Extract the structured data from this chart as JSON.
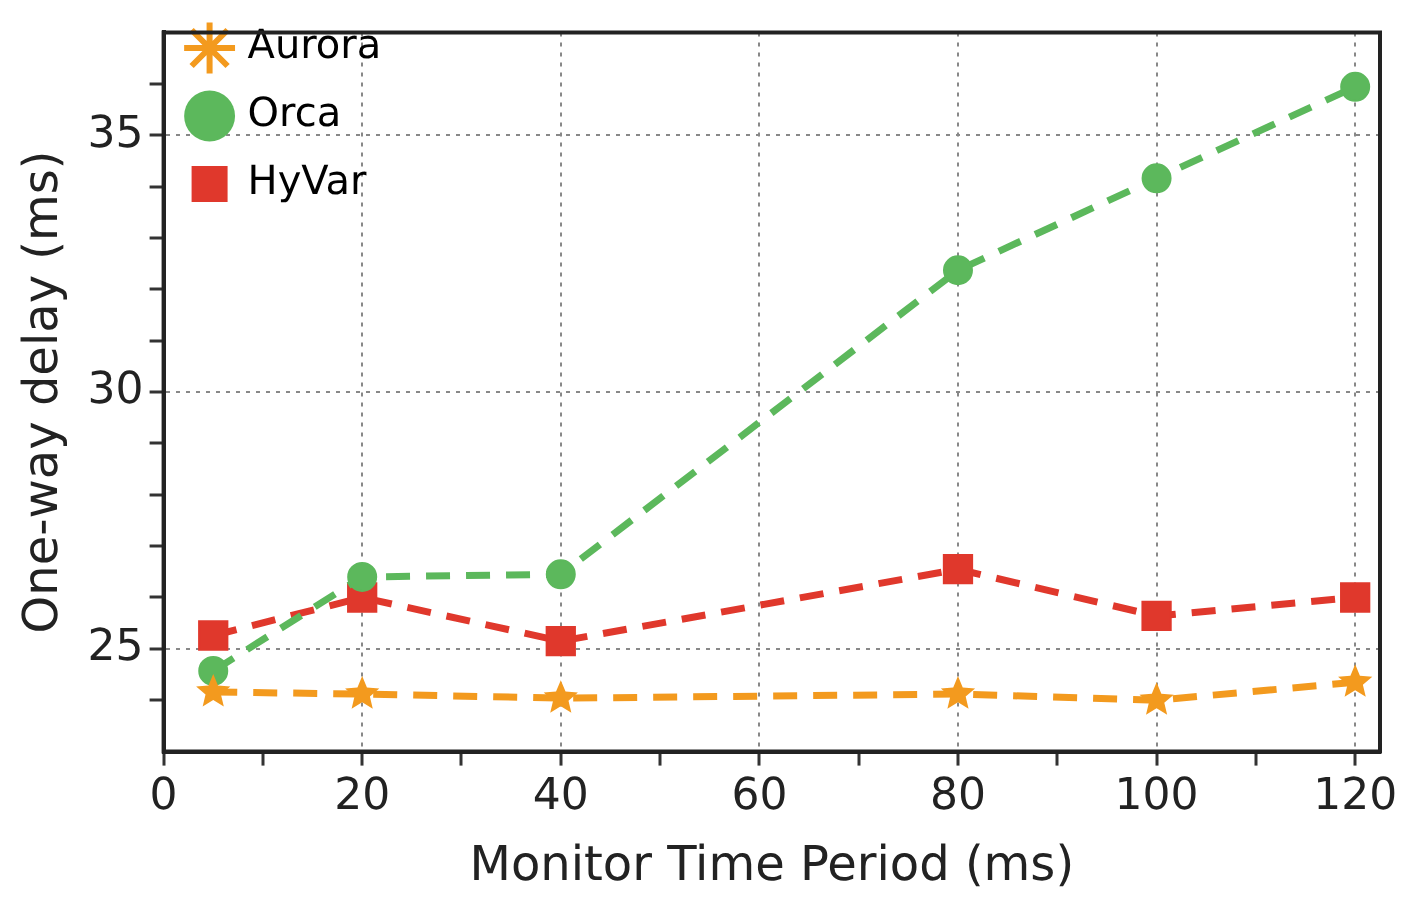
{
  "chart_data": {
    "type": "line",
    "xlabel": "Monitor Time Period (ms)",
    "ylabel": "One-way delay (ms)",
    "x": [
      5,
      20,
      40,
      80,
      100,
      120
    ],
    "series": [
      {
        "name": "Aurora",
        "color": "#f39a1e",
        "marker": "star",
        "values": [
          24.16,
          24.12,
          24.04,
          24.12,
          24.0,
          24.35
        ]
      },
      {
        "name": "Orca",
        "color": "#5cb85c",
        "marker": "circle",
        "values": [
          24.57,
          26.4,
          26.45,
          32.37,
          34.16,
          35.94
        ]
      },
      {
        "name": "HyVar",
        "color": "#e0382c",
        "marker": "square",
        "values": [
          25.26,
          26.0,
          25.15,
          26.55,
          25.64,
          26.0
        ]
      }
    ],
    "xlim": [
      0,
      122.5
    ],
    "xticks": [
      0,
      {
        "value": 10,
        "label": null
      },
      20,
      {
        "value": 30,
        "label": null
      },
      40,
      {
        "value": 50,
        "label": null
      },
      60,
      {
        "value": 70,
        "label": null
      },
      80,
      {
        "value": 90,
        "label": null
      },
      100,
      {
        "value": 110,
        "label": null
      },
      120
    ],
    "ylim": [
      23,
      37
    ],
    "yticks": [
      {
        "value": 24,
        "label": null
      },
      25,
      {
        "value": 26,
        "label": null
      },
      {
        "value": 27,
        "label": null
      },
      {
        "value": 28,
        "label": null
      },
      {
        "value": 29,
        "label": null
      },
      30,
      {
        "value": 31,
        "label": null
      },
      {
        "value": 32,
        "label": null
      },
      {
        "value": 33,
        "label": null
      },
      {
        "value": 34,
        "label": null
      },
      35,
      {
        "value": 36,
        "label": null
      }
    ],
    "grid": true,
    "legend": "top left",
    "line_style": "dashed"
  }
}
